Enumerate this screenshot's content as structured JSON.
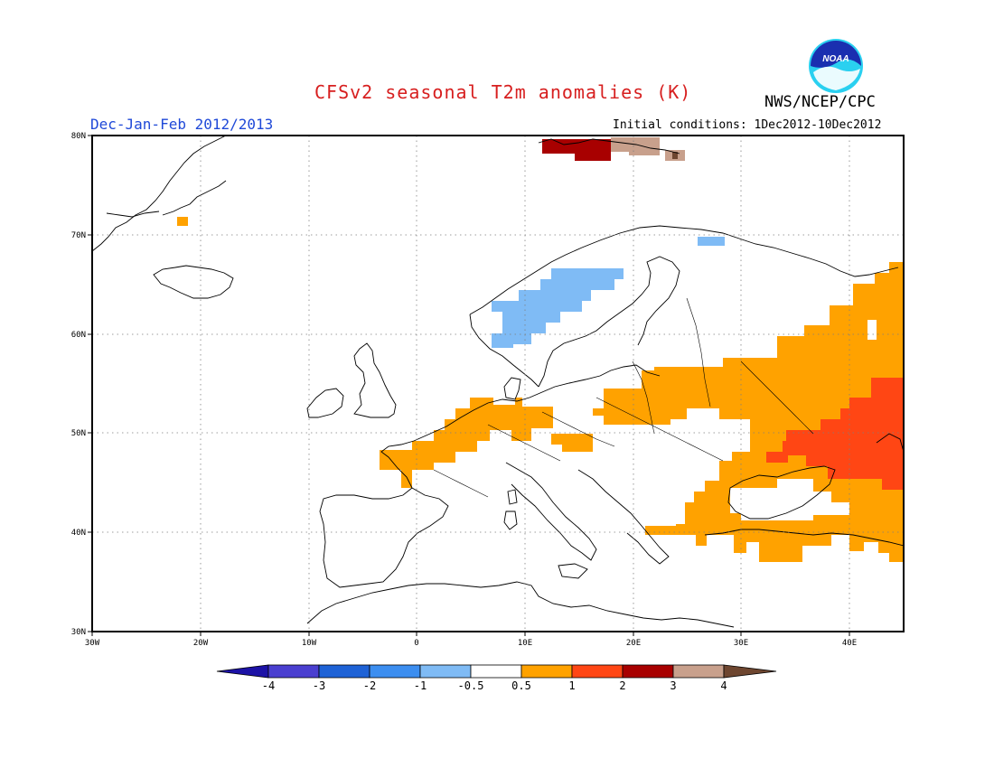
{
  "header": {
    "title": "CFSv2 seasonal T2m anomalies (K)",
    "agency": "NWS/NCEP/CPC",
    "period": "Dec-Jan-Feb 2012/2013",
    "initial_conditions": "Initial conditions: 1Dec2012-10Dec2012",
    "logo_text": "NOAA"
  },
  "map": {
    "lat_labels": [
      "80N",
      "70N",
      "60N",
      "50N",
      "40N",
      "30N"
    ],
    "lon_labels": [
      "30W",
      "20W",
      "10W",
      "0",
      "10E",
      "20E",
      "30E",
      "40E"
    ],
    "lon_range": [
      -30,
      45
    ],
    "lat_range": [
      30,
      80
    ],
    "grid": true
  },
  "colorbar": {
    "labels": [
      "-4",
      "-3",
      "-2",
      "-1",
      "-0.5",
      "0.5",
      "1",
      "2",
      "3",
      "4"
    ],
    "colors": [
      "#1c12a6",
      "#4a3fd0",
      "#1e62d6",
      "#3c8ef0",
      "#7fbbf5",
      "#ffffff",
      "#ffa200",
      "#ff4614",
      "#a80000",
      "#c8a08c",
      "#6e4630"
    ]
  },
  "anomaly_colors": {
    "light_blue": "#7fbbf5",
    "orange": "#ffa200",
    "red_orange": "#ff4614",
    "dark_red": "#a80000",
    "tan": "#c8a08c",
    "brown": "#6e4630"
  }
}
